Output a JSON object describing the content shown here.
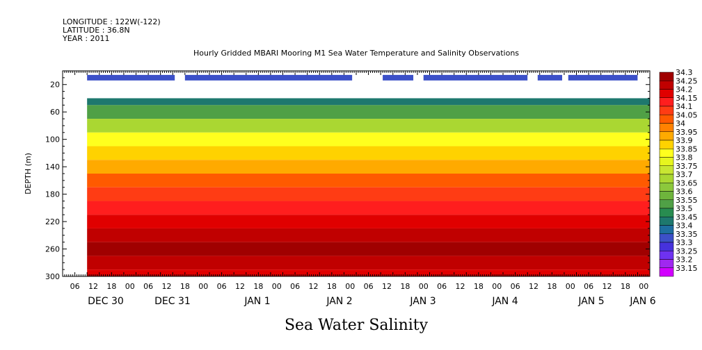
{
  "meta": {
    "longitude": "LONGITUDE : 122W(-122)",
    "latitude": "LATITUDE : 36.8N",
    "year": "YEAR : 2011"
  },
  "chart_data": {
    "type": "heatmap",
    "title": "Hourly Gridded MBARI Mooring M1 Sea Water Temperature and Salinity Observations",
    "xlabel": "Sea Water Salinity",
    "ylabel": "DEPTH (m)",
    "ylim": [
      300,
      0
    ],
    "y_ticks": [
      20,
      60,
      100,
      140,
      180,
      220,
      260,
      300
    ],
    "x_hour_ticks": [
      "06",
      "12",
      "18",
      "00",
      "06",
      "12",
      "18",
      "00",
      "06",
      "12",
      "18",
      "00",
      "06",
      "12",
      "18",
      "00",
      "06",
      "12",
      "18",
      "00",
      "06",
      "12",
      "18",
      "00",
      "06",
      "12",
      "18",
      "00",
      "06",
      "12",
      "18",
      "00"
    ],
    "x_day_labels": [
      "DEC 30",
      "DEC 31",
      "JAN  1",
      "JAN  2",
      "JAN  3",
      "JAN  4",
      "JAN  5",
      "JAN  6"
    ],
    "colorbar_levels": [
      "34.3",
      "34.25",
      "34.2",
      "34.15",
      "34.1",
      "34.05",
      "34",
      "33.95",
      "33.9",
      "33.85",
      "33.8",
      "33.75",
      "33.7",
      "33.65",
      "33.6",
      "33.55",
      "33.5",
      "33.45",
      "33.4",
      "33.35",
      "33.3",
      "33.25",
      "33.2",
      "33.15"
    ],
    "colorbar_colors": [
      "#a00000",
      "#c00000",
      "#e00000",
      "#ff1e1e",
      "#ff3c14",
      "#ff5a00",
      "#ff8200",
      "#ffaa00",
      "#ffd200",
      "#ffff1e",
      "#e6f51e",
      "#c8e632",
      "#aad732",
      "#8cc83c",
      "#6eb43c",
      "#50a046",
      "#288c50",
      "#1e786e",
      "#1e6ea0",
      "#3c50c8",
      "#4632dc",
      "#6e32f0",
      "#a028f0",
      "#d200ff"
    ],
    "depth_profile": [
      {
        "depth": 40,
        "value": 33.45
      },
      {
        "depth": 60,
        "value": 33.55
      },
      {
        "depth": 80,
        "value": 33.7
      },
      {
        "depth": 100,
        "value": 33.85
      },
      {
        "depth": 120,
        "value": 33.9
      },
      {
        "depth": 140,
        "value": 33.95
      },
      {
        "depth": 160,
        "value": 34.05
      },
      {
        "depth": 180,
        "value": 34.1
      },
      {
        "depth": 200,
        "value": 34.15
      },
      {
        "depth": 220,
        "value": 34.2
      },
      {
        "depth": 240,
        "value": 34.25
      },
      {
        "depth": 260,
        "value": 34.3
      },
      {
        "depth": 280,
        "value": 34.25
      },
      {
        "depth": 300,
        "value": 34.2
      }
    ],
    "surface_segments_depth": 10,
    "surface_segments_value": 33.35,
    "surface_segments": [
      {
        "start_hour": 12,
        "end_hour": 55
      },
      {
        "start_hour": 60,
        "end_hour": 142
      },
      {
        "start_hour": 157,
        "end_hour": 172
      },
      {
        "start_hour": 177,
        "end_hour": 228
      },
      {
        "start_hour": 233,
        "end_hour": 245
      },
      {
        "start_hour": 248,
        "end_hour": 282
      }
    ]
  }
}
